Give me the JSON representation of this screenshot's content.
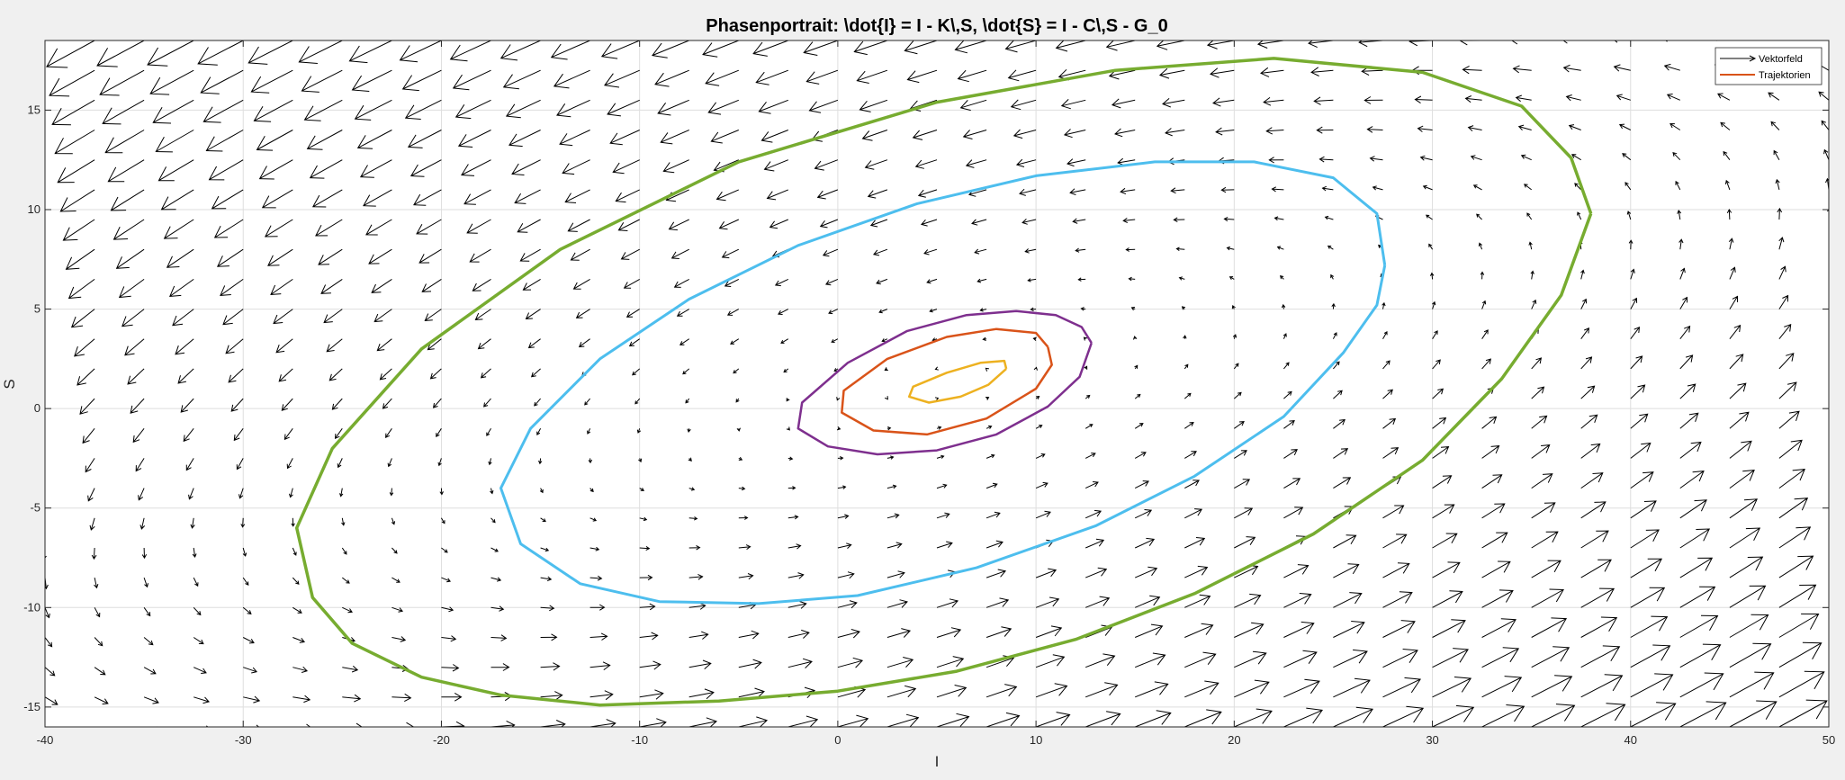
{
  "chart_data": {
    "type": "line",
    "title": "Phasenportrait: \\dot{I} = I - K\\,S,  \\dot{S} = I - C\\,S - G_0",
    "xlabel": "I",
    "ylabel": "S",
    "xlim": [
      -40,
      50
    ],
    "ylim": [
      -16,
      18.5
    ],
    "xticks": [
      -40,
      -30,
      -20,
      -10,
      0,
      10,
      20,
      30,
      40,
      50
    ],
    "yticks": [
      -15,
      -10,
      -5,
      0,
      5,
      10,
      15
    ],
    "grid": true,
    "legend": {
      "placement": "top-right",
      "entries": [
        {
          "label": "Vektorfeld",
          "color": "#000000",
          "kind": "quiver"
        },
        {
          "label": "Trajektorien",
          "color": "#D95319",
          "kind": "line"
        }
      ]
    },
    "vector_field": {
      "label": "Vektorfeld",
      "color": "#000000",
      "center": [
        5,
        1.2
      ],
      "x_grid": {
        "start": -40,
        "step": 2.5,
        "count": 37
      },
      "y_grid": {
        "start": -16,
        "step": 1.5,
        "count": 24
      }
    },
    "series": [
      {
        "color": "#EDB120",
        "points": [
          [
            8.5,
            2.0
          ],
          [
            8.4,
            2.4
          ],
          [
            7.2,
            2.3
          ],
          [
            5.5,
            1.8
          ],
          [
            3.8,
            1.1
          ],
          [
            3.6,
            0.6
          ],
          [
            4.6,
            0.3
          ],
          [
            6.2,
            0.6
          ],
          [
            7.6,
            1.2
          ],
          [
            8.5,
            2.0
          ]
        ]
      },
      {
        "color": "#D95319",
        "points": [
          [
            10.6,
            3.1
          ],
          [
            10.0,
            3.8
          ],
          [
            8.0,
            4.0
          ],
          [
            5.5,
            3.6
          ],
          [
            2.5,
            2.5
          ],
          [
            0.3,
            0.9
          ],
          [
            0.2,
            -0.2
          ],
          [
            1.8,
            -1.1
          ],
          [
            4.5,
            -1.3
          ],
          [
            7.5,
            -0.5
          ],
          [
            10.0,
            1.0
          ],
          [
            10.8,
            2.2
          ],
          [
            10.6,
            3.1
          ]
        ]
      },
      {
        "color": "#7E2F8E",
        "points": [
          [
            12.8,
            3.3
          ],
          [
            12.3,
            4.1
          ],
          [
            11.0,
            4.7
          ],
          [
            9.0,
            4.9
          ],
          [
            6.5,
            4.7
          ],
          [
            3.5,
            3.9
          ],
          [
            0.5,
            2.3
          ],
          [
            -1.8,
            0.3
          ],
          [
            -2.0,
            -1.0
          ],
          [
            -0.5,
            -1.9
          ],
          [
            2.0,
            -2.3
          ],
          [
            5.0,
            -2.1
          ],
          [
            8.0,
            -1.3
          ],
          [
            10.6,
            0.1
          ],
          [
            12.2,
            1.6
          ],
          [
            12.8,
            3.3
          ]
        ]
      },
      {
        "color": "#4DBEEE",
        "points": [
          [
            27.6,
            7.2
          ],
          [
            27.2,
            9.8
          ],
          [
            25.0,
            11.6
          ],
          [
            21.0,
            12.4
          ],
          [
            16.0,
            12.4
          ],
          [
            10.0,
            11.7
          ],
          [
            4.0,
            10.3
          ],
          [
            -2.0,
            8.2
          ],
          [
            -7.5,
            5.5
          ],
          [
            -12.0,
            2.5
          ],
          [
            -15.5,
            -1.0
          ],
          [
            -17.0,
            -4.0
          ],
          [
            -16.0,
            -6.8
          ],
          [
            -13.0,
            -8.8
          ],
          [
            -9.0,
            -9.7
          ],
          [
            -4.0,
            -9.8
          ],
          [
            1.0,
            -9.4
          ],
          [
            7.0,
            -8.0
          ],
          [
            13.0,
            -5.9
          ],
          [
            18.0,
            -3.4
          ],
          [
            22.5,
            -0.4
          ],
          [
            25.5,
            2.8
          ],
          [
            27.2,
            5.2
          ],
          [
            27.6,
            7.2
          ]
        ]
      },
      {
        "color": "#77AC30",
        "points": [
          [
            38.0,
            9.8
          ],
          [
            37.0,
            12.6
          ],
          [
            34.5,
            15.2
          ],
          [
            29.5,
            16.9
          ],
          [
            22.0,
            17.6
          ],
          [
            14.0,
            17.0
          ],
          [
            5.0,
            15.4
          ],
          [
            -5.0,
            12.4
          ],
          [
            -14.0,
            8.0
          ],
          [
            -21.0,
            3.0
          ],
          [
            -25.5,
            -2.0
          ],
          [
            -27.3,
            -6.0
          ],
          [
            -26.5,
            -9.5
          ],
          [
            -24.5,
            -11.8
          ],
          [
            -21.0,
            -13.5
          ],
          [
            -17.0,
            -14.4
          ],
          [
            -12.0,
            -14.9
          ],
          [
            -6.0,
            -14.7
          ],
          [
            0.0,
            -14.2
          ],
          [
            6.0,
            -13.2
          ],
          [
            12.0,
            -11.6
          ],
          [
            18.0,
            -9.3
          ],
          [
            24.0,
            -6.3
          ],
          [
            29.5,
            -2.6
          ],
          [
            33.5,
            1.5
          ],
          [
            36.5,
            5.7
          ],
          [
            38.0,
            9.8
          ]
        ]
      }
    ]
  }
}
